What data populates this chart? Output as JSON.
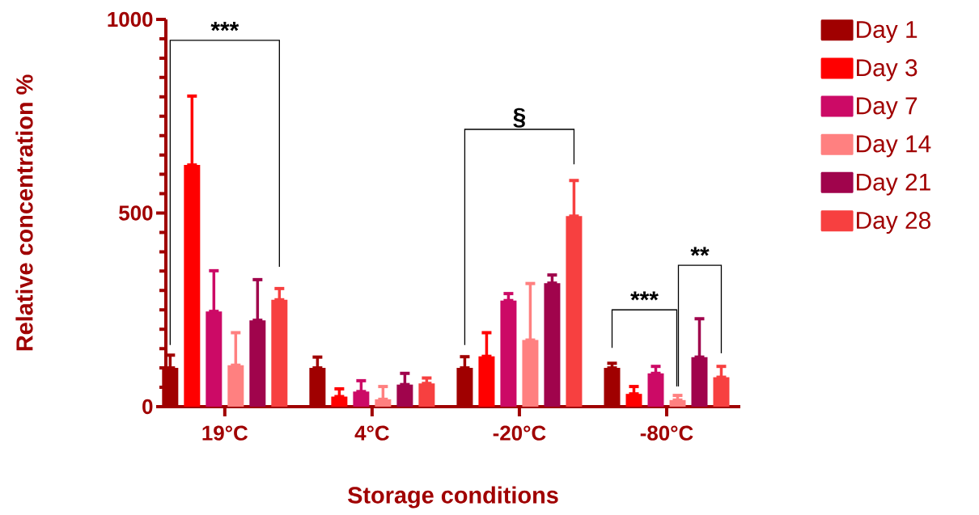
{
  "chart_data": {
    "type": "bar",
    "xlabel": "Storage conditions",
    "ylabel": "Relative concentration %",
    "categories": [
      "19°C",
      "4°C",
      "-20°C",
      "-80°C"
    ],
    "ylim": [
      0,
      1000
    ],
    "yticks": [
      0,
      500,
      1000
    ],
    "legend": "right",
    "grid": false,
    "series": [
      {
        "name": "Day 1",
        "color": "#a00000",
        "values": [
          100,
          100,
          100,
          100
        ],
        "errors": [
          [
            100,
            133
          ],
          [
            100,
            128
          ],
          [
            100,
            129
          ],
          [
            100,
            112
          ]
        ]
      },
      {
        "name": "Day 3",
        "color": "#ff0000",
        "values": [
          624,
          26,
          130,
          33
        ],
        "errors": [
          [
            624,
            802
          ],
          [
            26,
            46
          ],
          [
            130,
            191
          ],
          [
            33,
            52
          ]
        ]
      },
      {
        "name": "Day 7",
        "color": "#cc0a66",
        "values": [
          246,
          39,
          274,
          86
        ],
        "errors": [
          [
            246,
            351
          ],
          [
            39,
            67
          ],
          [
            274,
            292
          ],
          [
            86,
            104
          ]
        ]
      },
      {
        "name": "Day 14",
        "color": "#ff8080",
        "values": [
          107,
          19,
          172,
          17
        ],
        "errors": [
          [
            107,
            191
          ],
          [
            19,
            52
          ],
          [
            172,
            318
          ],
          [
            17,
            29
          ]
        ]
      },
      {
        "name": "Day 21",
        "color": "#a0044c",
        "values": [
          223,
          57,
          319,
          128
        ],
        "errors": [
          [
            223,
            328
          ],
          [
            57,
            86
          ],
          [
            319,
            340
          ],
          [
            128,
            227
          ]
        ]
      },
      {
        "name": "Day 28",
        "color": "#f74040",
        "values": [
          276,
          60,
          492,
          76
        ],
        "errors": [
          [
            276,
            305
          ],
          [
            60,
            74
          ],
          [
            492,
            584
          ],
          [
            76,
            104
          ]
        ]
      }
    ],
    "annotations": [
      "***",
      "§",
      "***",
      "**"
    ]
  }
}
